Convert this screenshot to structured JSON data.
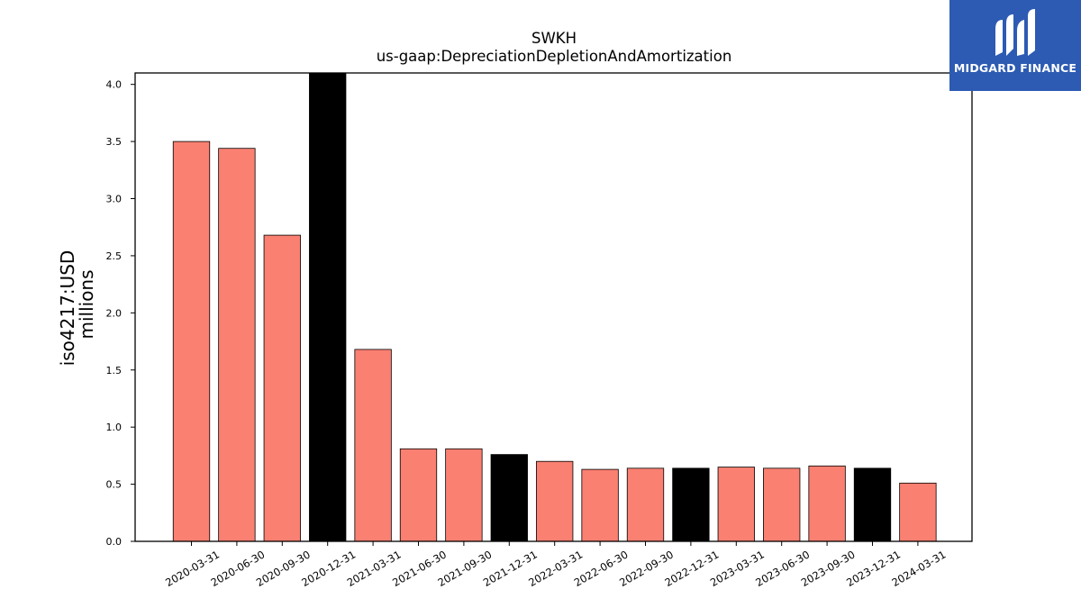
{
  "chart_data": {
    "type": "bar",
    "title": "SWKH",
    "subtitle": "us-gaap:DepreciationDepletionAndAmortization",
    "ylabel_line1": "iso4217:USD",
    "ylabel_line2": "millions",
    "xlabel": "",
    "ylim": [
      0,
      4.1
    ],
    "yticks": [
      "0.0",
      "0.5",
      "1.0",
      "1.5",
      "2.0",
      "2.5",
      "3.0",
      "3.5",
      "4.0"
    ],
    "categories": [
      "2020-03-31",
      "2020-06-30",
      "2020-09-30",
      "2020-12-31",
      "2021-03-31",
      "2021-06-30",
      "2021-09-30",
      "2021-12-31",
      "2022-03-31",
      "2022-06-30",
      "2022-09-30",
      "2022-12-31",
      "2023-03-31",
      "2023-06-30",
      "2023-09-30",
      "2023-12-31",
      "2024-03-31"
    ],
    "values": [
      3.5,
      3.44,
      2.68,
      4.1,
      1.68,
      0.81,
      0.81,
      0.76,
      0.7,
      0.63,
      0.64,
      0.64,
      0.65,
      0.64,
      0.66,
      0.64,
      0.51
    ],
    "bar_colors": [
      "#fa8072",
      "#fa8072",
      "#fa8072",
      "#000000",
      "#fa8072",
      "#fa8072",
      "#fa8072",
      "#000000",
      "#fa8072",
      "#fa8072",
      "#fa8072",
      "#000000",
      "#fa8072",
      "#fa8072",
      "#fa8072",
      "#000000",
      "#fa8072"
    ],
    "grid": false,
    "legend": "none"
  },
  "logo": {
    "text": "MIDGARD FINANCE",
    "background": "#2d5bb3"
  }
}
